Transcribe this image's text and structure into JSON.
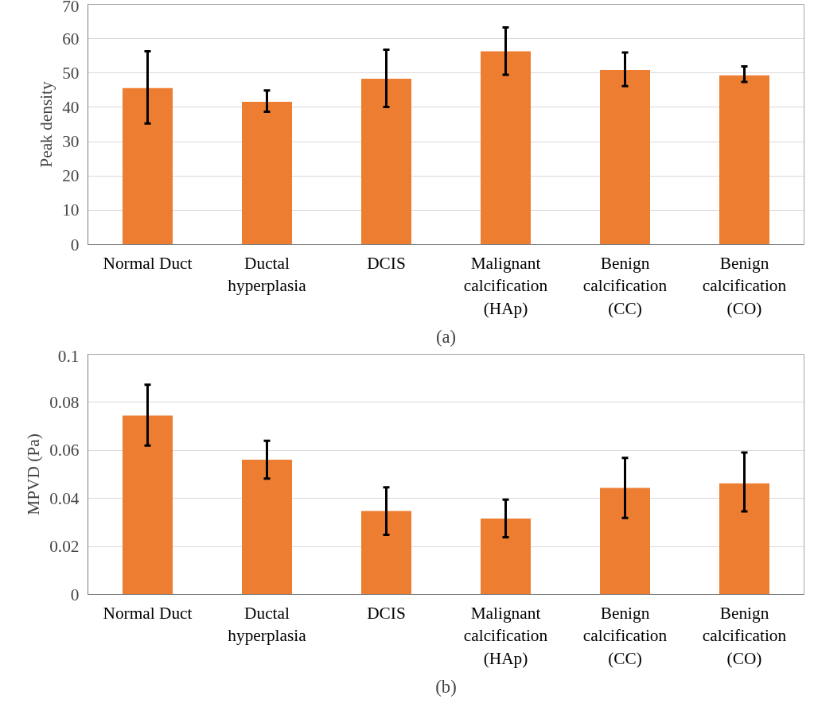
{
  "chart_data": [
    {
      "type": "bar",
      "categories": [
        "Normal Duct",
        "Ductal\nhyperplasia",
        "DCIS",
        "Malignant\ncalcification\n(HAp)",
        "Benign\ncalcification\n(CC)",
        "Benign\ncalcification\n(CO)"
      ],
      "ylabel": "Peak density",
      "color": "#ed7d31",
      "values": [
        45.6,
        41.6,
        48.3,
        56.3,
        50.9,
        49.3
      ],
      "errors": [
        [
          35.3,
          56.3
        ],
        [
          38.7,
          44.9
        ],
        [
          40.1,
          56.8
        ],
        [
          49.5,
          63.3
        ],
        [
          46.2,
          56.0
        ],
        [
          47.4,
          51.9
        ]
      ],
      "ylim": [
        0,
        70
      ],
      "yticks": [
        0,
        10,
        20,
        30,
        40,
        50,
        60,
        70
      ],
      "grid": "y",
      "annotations": [
        "(a)"
      ]
    },
    {
      "type": "bar",
      "categories": [
        "Normal Duct",
        "Ductal\nhyperplasia",
        "DCIS",
        "Malignant\ncalcification\n(HAp)",
        "Benign\ncalcification\n(CC)",
        "Benign\ncalcification\n(CO)"
      ],
      "ylabel": "MPVD (Pa)",
      "color": "#ed7d31",
      "values": [
        0.0745,
        0.0561,
        0.0348,
        0.0316,
        0.0444,
        0.0463
      ],
      "errors": [
        [
          0.062,
          0.0873
        ],
        [
          0.0483,
          0.064
        ],
        [
          0.0248,
          0.0446
        ],
        [
          0.0238,
          0.0395
        ],
        [
          0.0319,
          0.0569
        ],
        [
          0.0346,
          0.0591
        ]
      ],
      "ylim": [
        0,
        0.1
      ],
      "yticks": [
        0,
        0.02,
        0.04,
        0.06,
        0.08,
        0.1
      ],
      "grid": "y",
      "annotations": [
        "(b)"
      ]
    }
  ]
}
